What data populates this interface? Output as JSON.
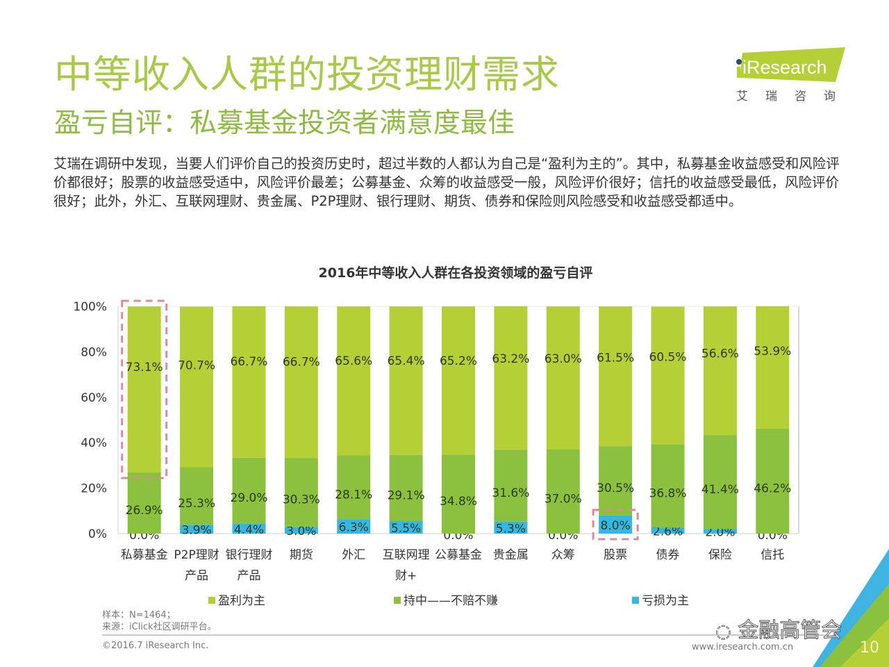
{
  "header": {
    "title": "中等收入人群的投资理财需求",
    "subtitle": "盈亏自评：私募基金投资者满意度最佳"
  },
  "logo": {
    "brand": "iResearch",
    "brand_cn": "艾瑞咨询",
    "colors": {
      "primary": "#b5cf36",
      "dot": "#2c4a6e"
    }
  },
  "body_text": "艾瑞在调研中发现，当要人们评价自己的投资历史时，超过半数的人都认为自己是“盈利为主的”。其中，私募基金收益感受和风险评价都很好；股票的收益感受适中，风险评价最差；公募基金、众筹的收益感受一般，风险评价很好；信托的收益感受最低，风险评价很好；此外，外汇、互联网理财、贵金属、P2P理财、银行理财、期货、债券和保险则风险感受和收益感受都适中。",
  "chart_data": {
    "type": "bar",
    "stacked": true,
    "title": "2016年中等收入人群在各投资领域的盈亏自评",
    "xlabel": "",
    "ylabel": "",
    "ylim": [
      0,
      100
    ],
    "yticks": [
      "0%",
      "20%",
      "40%",
      "60%",
      "80%",
      "100%"
    ],
    "grid": false,
    "legend_position": "bottom",
    "categories": [
      "私募基金",
      "P2P理财产品",
      "银行理财产品",
      "期货",
      "外汇",
      "互联网理财+",
      "公募基金",
      "贵金属",
      "众筹",
      "股票",
      "债券",
      "保险",
      "信托"
    ],
    "category_lines": [
      [
        "私募基金"
      ],
      [
        "P2P理财",
        "产品"
      ],
      [
        "银行理财",
        "产品"
      ],
      [
        "期货"
      ],
      [
        "外汇"
      ],
      [
        "互联网理",
        "财+"
      ],
      [
        "公募基金"
      ],
      [
        "贵金属"
      ],
      [
        "众筹"
      ],
      [
        "股票"
      ],
      [
        "债券"
      ],
      [
        "保险"
      ],
      [
        "信托"
      ]
    ],
    "series": [
      {
        "name": "亏损为主",
        "color": "#35b7e5",
        "values": [
          0.0,
          3.9,
          4.4,
          3.0,
          6.3,
          5.5,
          0.0,
          5.3,
          0.0,
          8.0,
          2.6,
          2.0,
          0.0
        ]
      },
      {
        "name": "持中——不赔不赚",
        "color": "#8bc13f",
        "values": [
          26.9,
          25.3,
          29.0,
          30.3,
          28.1,
          29.1,
          34.8,
          31.6,
          37.0,
          30.5,
          36.8,
          41.4,
          46.2
        ]
      },
      {
        "name": "盈利为主",
        "color": "#b5cf36",
        "values": [
          73.1,
          70.7,
          66.7,
          66.7,
          65.6,
          65.4,
          65.2,
          63.2,
          63.0,
          61.5,
          60.5,
          56.6,
          53.9
        ]
      }
    ],
    "legend": [
      "盈利为主",
      "持中——不赔不赚",
      "亏损为主"
    ],
    "highlights": [
      {
        "category": "私募基金",
        "series": "盈利为主"
      },
      {
        "category": "股票",
        "series": "亏损为主"
      }
    ],
    "highlight_color": "#d98c97"
  },
  "footer": {
    "sample": "样本：N=1464；",
    "source": "来源：iClick社区调研平台。",
    "copyright": "©2016.7 iResearch Inc.",
    "url": "www.iresearch.com.cn",
    "watermark": "金融高管会",
    "page_number": "10"
  }
}
